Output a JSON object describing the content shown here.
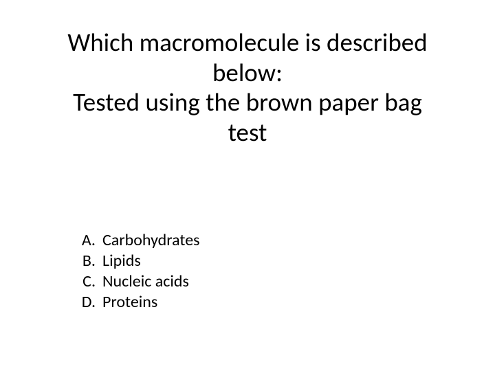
{
  "slide": {
    "title_line1": "Which macromolecule is described",
    "title_line2": "below:",
    "title_line3": "Tested using the brown paper bag",
    "title_line4": "test",
    "title_fontsize": 37,
    "title_color": "#000000",
    "options_fontsize": 24,
    "options_color": "#000000",
    "background_color": "#ffffff",
    "options": [
      {
        "letter": "A.",
        "text": "Carbohydrates"
      },
      {
        "letter": "B.",
        "text": "Lipids"
      },
      {
        "letter": "C.",
        "text": "Nucleic acids"
      },
      {
        "letter": "D.",
        "text": "Proteins"
      }
    ]
  }
}
